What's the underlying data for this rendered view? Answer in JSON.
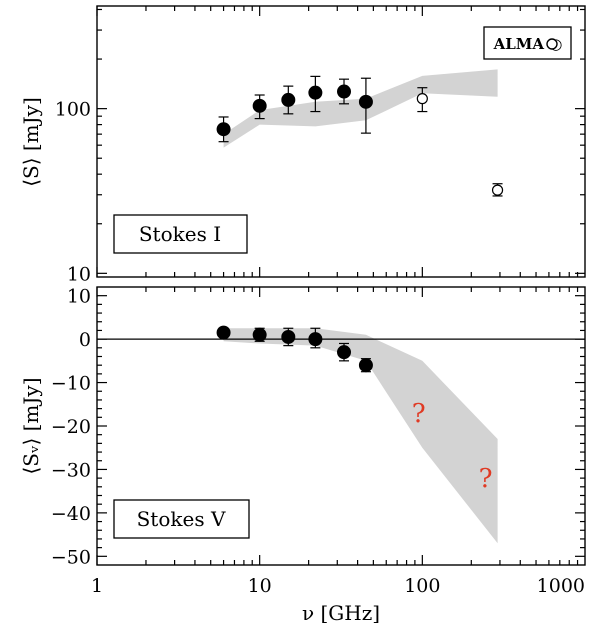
{
  "chart_data": [
    {
      "type": "scatter",
      "title": "",
      "xlabel": "ν [GHz]",
      "ylabel": "⟨S⟩ [mJy]",
      "xscale": "log",
      "yscale": "log",
      "xlim": [
        1,
        1000
      ],
      "ylim": [
        9.5,
        420
      ],
      "x_tick_labels": [],
      "y_ticks": [
        10,
        100
      ],
      "y_tick_labels": [
        "10",
        "100"
      ],
      "box_label": "Stokes I",
      "legend": {
        "label": "ALMA ○",
        "placement": "top-right"
      },
      "series": [
        {
          "marker": "filled-circle",
          "x": [
            6,
            10,
            15,
            22,
            33,
            45
          ],
          "y": [
            75,
            104,
            113,
            125,
            127,
            110
          ],
          "err_lo": [
            63,
            87,
            93,
            96,
            107,
            71
          ],
          "err_hi": [
            89,
            121,
            137,
            157,
            151,
            153
          ]
        },
        {
          "name": "ALMA",
          "marker": "open-circle",
          "x": [
            100,
            290
          ],
          "y": [
            115,
            32
          ],
          "err_lo": [
            96,
            29.5
          ],
          "err_hi": [
            134,
            35
          ]
        }
      ],
      "model_band": {
        "x": [
          6,
          10,
          22,
          45,
          100,
          290
        ],
        "y_lower": [
          58,
          80,
          78,
          85,
          124,
          118
        ],
        "y_upper": [
          70,
          98,
          110,
          115,
          158,
          173
        ]
      },
      "band_color": "#d3d3d3"
    },
    {
      "type": "scatter",
      "title": "",
      "xlabel": "ν [GHz]",
      "ylabel": "⟨Sᵥ⟩ [mJy]",
      "xscale": "log",
      "yscale": "linear",
      "xlim": [
        1,
        1000
      ],
      "ylim": [
        -52,
        12
      ],
      "x_ticks": [
        1,
        10,
        100,
        1000
      ],
      "x_tick_labels": [
        "1",
        "10",
        "100",
        "1000"
      ],
      "y_ticks": [
        10,
        0,
        -10,
        -20,
        -30,
        -40,
        -50
      ],
      "y_tick_labels": [
        "10",
        "0",
        "−10",
        "−20",
        "−30",
        "−40",
        "−50"
      ],
      "box_label": "Stokes V",
      "zero_line": 0,
      "series": [
        {
          "marker": "filled-circle",
          "x": [
            6,
            10,
            15,
            22,
            33,
            45
          ],
          "y": [
            1.5,
            1.0,
            0.5,
            0.0,
            -3.0,
            -6.0
          ],
          "err_lo": [
            0.5,
            -0.5,
            -1.5,
            -2.0,
            -5.0,
            -7.5
          ],
          "err_hi": [
            2.5,
            2.5,
            2.5,
            2.5,
            -1.0,
            -4.5
          ]
        }
      ],
      "unknown_markers": [
        {
          "x": 95,
          "y": -17,
          "label": "?"
        },
        {
          "x": 245,
          "y": -32,
          "label": "?"
        }
      ],
      "model_band": {
        "x": [
          6,
          10,
          22,
          45,
          100,
          290
        ],
        "y_lower": [
          -0.5,
          -1.0,
          -1.5,
          -5.0,
          -25.0,
          -47.0
        ],
        "y_upper": [
          2.5,
          2.5,
          2.5,
          1.0,
          -5.0,
          -23.0
        ]
      },
      "band_color": "#d3d3d3",
      "question_color": "#e03a24"
    }
  ]
}
